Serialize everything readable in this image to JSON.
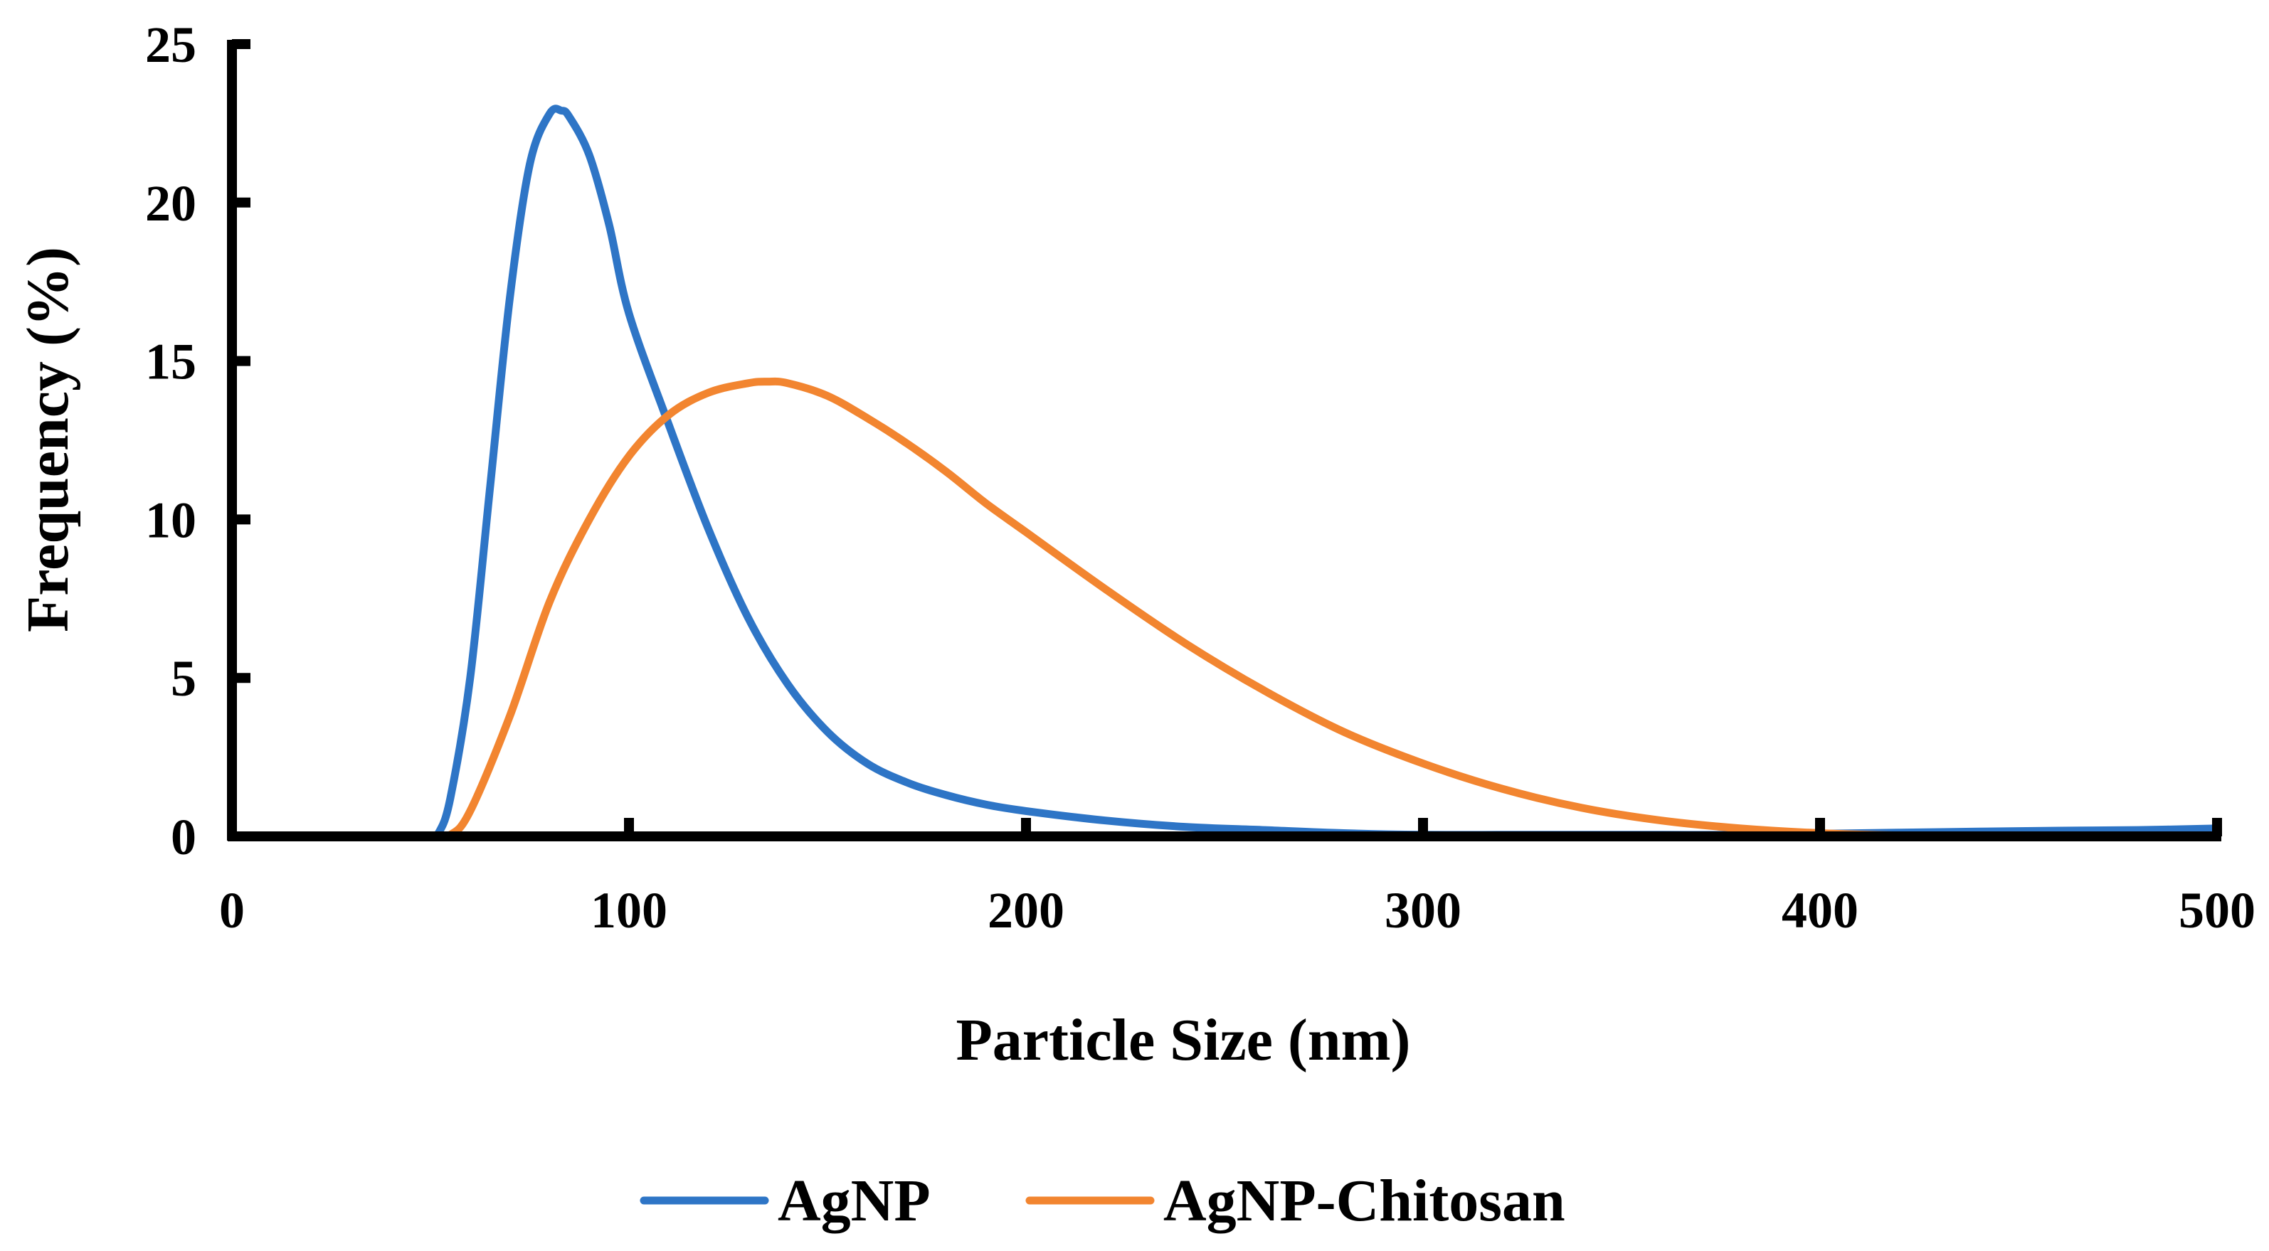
{
  "chart_data": {
    "type": "line",
    "title": "",
    "xlabel": "Particle Size (nm)",
    "ylabel": "Frequency (%)",
    "xlim": [
      0,
      500
    ],
    "ylim": [
      0,
      25
    ],
    "xticks": [
      0,
      100,
      200,
      300,
      400,
      500
    ],
    "yticks": [
      0,
      5,
      10,
      15,
      20,
      25
    ],
    "grid": false,
    "legend_position": "bottom",
    "series": [
      {
        "name": "AgNP",
        "color": "#2E75C6",
        "x": [
          0,
          50,
          52,
          55,
          60,
          65,
          70,
          75,
          80,
          83,
          85,
          90,
          95,
          100,
          110,
          120,
          130,
          140,
          150,
          160,
          170,
          180,
          190,
          200,
          220,
          240,
          260,
          280,
          300,
          320,
          340,
          360,
          380,
          400,
          420,
          440,
          460,
          480,
          500
        ],
        "y": [
          0,
          0,
          0.1,
          1.2,
          5.0,
          11.0,
          17.0,
          21.2,
          22.8,
          22.9,
          22.7,
          21.5,
          19.3,
          16.5,
          13.0,
          9.7,
          6.9,
          4.8,
          3.3,
          2.3,
          1.7,
          1.3,
          1.0,
          0.8,
          0.5,
          0.3,
          0.2,
          0.1,
          0.05,
          0.05,
          0.05,
          0.05,
          0.05,
          0.08,
          0.12,
          0.15,
          0.18,
          0.2,
          0.25
        ]
      },
      {
        "name": "AgNP-Chitosan",
        "color": "#F28530",
        "x": [
          0,
          50,
          55,
          60,
          70,
          80,
          90,
          100,
          110,
          120,
          130,
          135,
          140,
          150,
          160,
          170,
          180,
          190,
          200,
          220,
          240,
          260,
          280,
          300,
          320,
          340,
          360,
          380,
          400,
          420,
          440,
          460,
          480,
          500
        ],
        "y": [
          0,
          0,
          0.05,
          0.8,
          3.8,
          7.4,
          10.0,
          12.0,
          13.3,
          14.0,
          14.3,
          14.35,
          14.3,
          13.9,
          13.2,
          12.4,
          11.5,
          10.5,
          9.6,
          7.8,
          6.1,
          4.6,
          3.3,
          2.3,
          1.5,
          0.9,
          0.5,
          0.25,
          0.1,
          0.03,
          0.02,
          0.02,
          0.02,
          0.02
        ]
      }
    ]
  }
}
